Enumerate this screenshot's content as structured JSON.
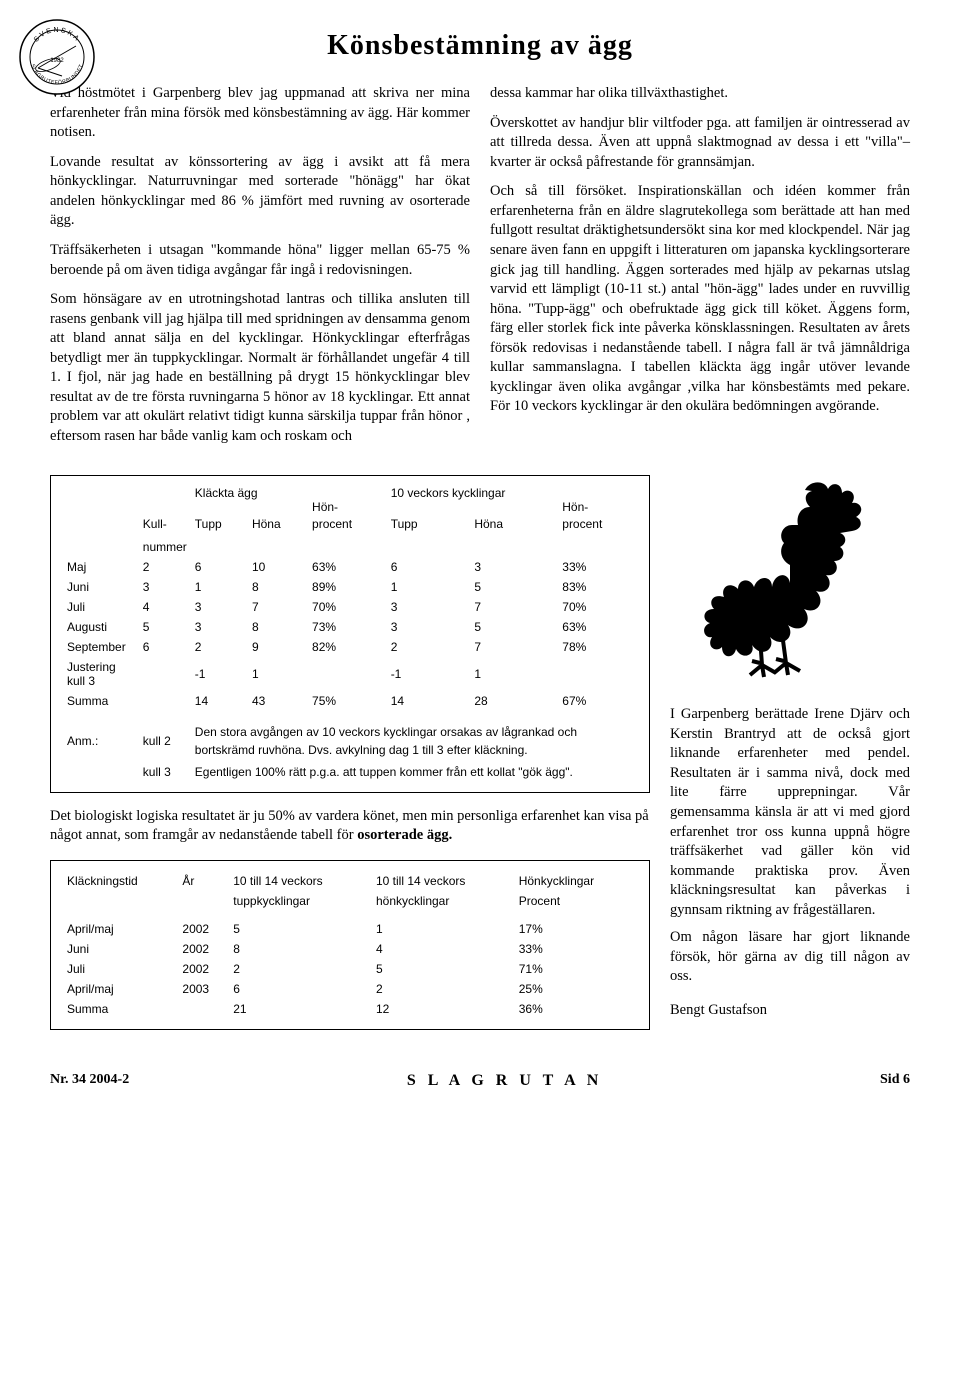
{
  "title": "Könsbestämning av ägg",
  "columns": {
    "left": [
      "Vid höstmötet i Garpenberg blev jag uppmanad att skriva ner mina erfarenheter från mina försök med könsbestämning av ägg. Här kommer notisen.",
      "Lovande resultat av könssortering av ägg i avsikt att få mera hönkycklingar. Naturruvningar med sorterade \"hönägg\" har ökat andelen hönkycklingar med 86 % jämfört med ruvning av osorterade ägg.",
      "Träffsäkerheten i utsagan \"kommande höna\" ligger mellan 65-75 % beroende på om även tidiga avgångar får ingå i redovisningen.",
      "Som hönsägare av en utrotningshotad lantras och tillika ansluten till rasens genbank vill jag hjälpa till med spridningen av densamma genom att bland annat sälja en del kycklingar. Hönkycklingar efterfrågas betydligt mer än tuppkycklingar. Normalt är förhållandet ungefär 4 till 1. I fjol, när jag hade en beställning på drygt 15 hönkycklingar blev resultat av de tre första ruvningarna 5 hönor av 18 kycklingar. Ett annat problem var att okulärt relativt tidigt kunna särskilja tuppar från hönor , eftersom rasen har både vanlig kam och roskam och"
    ],
    "right": [
      "dessa kammar har olika tillväxthastighet.",
      "Överskottet av handjur blir viltfoder pga. att familjen är ointresserad av att tillreda dessa. Även att uppnå slaktmognad av dessa i ett \"villa\"– kvarter är också påfrestande för grannsämjan.",
      "Och så till försöket. Inspirationskällan och idéen kommer från erfarenheterna från en äldre slagrutekollega som berättade att han med fullgott resultat dräktighetsundersökt sina kor med klockpendel. När jag senare även fann en uppgift i litteraturen om japanska kycklingsorterare gick jag till handling. Äggen sorterades med hjälp av pekarnas utslag varvid ett lämpligt (10-11 st.) antal \"hön-ägg\" lades under en ruvvillig höna. \"Tupp-ägg\" och obefruktade ägg gick till köket. Äggens form, färg eller storlek fick inte påverka könsklassningen. Resultaten av årets försök redovisas i nedanstående tabell. I några fall är två jämnåldriga kullar sammanslagna. I tabellen kläckta ägg ingår utöver levande kycklingar även olika avgångar ,vilka har könsbestämts med pekare. För 10 veckors kycklingar är den okulära bedömningen avgörande."
    ]
  },
  "table1": {
    "group1": "Kläckta ägg",
    "group2": "10 veckors kycklingar",
    "header_kull": "Kull-",
    "header_nummer": "nummer",
    "header_tupp": "Tupp",
    "header_hona": "Höna",
    "header_honprocent_top": "Hön-",
    "header_honprocent": "procent",
    "rows": [
      {
        "m": "Maj",
        "k": "2",
        "t1": "6",
        "h1": "10",
        "p1": "63%",
        "t2": "6",
        "h2": "3",
        "p2": "33%"
      },
      {
        "m": "Juni",
        "k": "3",
        "t1": "1",
        "h1": "8",
        "p1": "89%",
        "t2": "1",
        "h2": "5",
        "p2": "83%"
      },
      {
        "m": "Juli",
        "k": "4",
        "t1": "3",
        "h1": "7",
        "p1": "70%",
        "t2": "3",
        "h2": "7",
        "p2": "70%"
      },
      {
        "m": "Augusti",
        "k": "5",
        "t1": "3",
        "h1": "8",
        "p1": "73%",
        "t2": "3",
        "h2": "5",
        "p2": "63%"
      },
      {
        "m": "September",
        "k": "6",
        "t1": "2",
        "h1": "9",
        "p1": "82%",
        "t2": "2",
        "h2": "7",
        "p2": "78%"
      },
      {
        "m": "Justering kull 3",
        "k": "",
        "t1": "-1",
        "h1": "1",
        "p1": "",
        "t2": "-1",
        "h2": "1",
        "p2": ""
      },
      {
        "m": "Summa",
        "k": "",
        "t1": "14",
        "h1": "43",
        "p1": "75%",
        "t2": "14",
        "h2": "28",
        "p2": "67%"
      }
    ],
    "note_label": "Anm.:",
    "note_k2_label": "kull 2",
    "note_k2": "Den stora avgången av 10 veckors kycklingar orsakas av lågrankad och bortskrämd ruvhöna. Dvs. avkylning dag 1 till 3 efter kläckning.",
    "note_k3_label": "kull 3",
    "note_k3": "Egentligen 100% rätt p.g.a. att tuppen kommer från ett kollat \"gök ägg\"."
  },
  "between": "Det biologiskt logiska resultatet är ju 50% av vardera könet, men min personliga erfarenhet kan visa på något annat, som framgår av nedanstående tabell för osorterade ägg.",
  "table2": {
    "h_tid": "Kläckningstid",
    "h_ar": "År",
    "h_c1a": "10 till 14 veckors",
    "h_c1b": "tuppkycklingar",
    "h_c2a": "10 till 14 veckors",
    "h_c2b": "hönkycklingar",
    "h_c3a": "Hönkycklingar",
    "h_c3b": "Procent",
    "rows": [
      {
        "m": "April/maj",
        "y": "2002",
        "t": "5",
        "h": "1",
        "p": "17%"
      },
      {
        "m": "Juni",
        "y": "2002",
        "t": "8",
        "h": "4",
        "p": "33%"
      },
      {
        "m": "Juli",
        "y": "2002",
        "t": "2",
        "h": "5",
        "p": "71%"
      },
      {
        "m": "April/maj",
        "y": "2003",
        "t": "6",
        "h": "2",
        "p": "25%"
      },
      {
        "m": "Summa",
        "y": "",
        "t": "21",
        "h": "12",
        "p": "36%"
      }
    ]
  },
  "side": [
    "I Garpenberg berättade Irene Djärv och Kerstin Brantryd att de också gjort liknande erfarenheter med pendel. Resultaten är i samma nivå, dock med lite färre upprepningar. Vår gemensamma känsla är att vi med gjord erfarenhet tror oss kunna uppnå högre träffsäkerhet vad gäller kön vid kommande praktiska prov. Även kläckningsresultat kan påverkas i gynnsam riktning av frågeställaren.",
    "Om någon läsare har gjort liknande försök, hör gärna av dig till någon av oss.",
    "Bengt Gustafson"
  ],
  "footer": {
    "issue": "Nr. 34    2004-2",
    "mag": "S L A G R U T A N",
    "page": "Sid  6"
  },
  "logo": {
    "top": "SVENSKA",
    "bottom": "SLAGRUTEFÖRBUNDET",
    "year": "1982"
  },
  "rooster_color": "#000000"
}
